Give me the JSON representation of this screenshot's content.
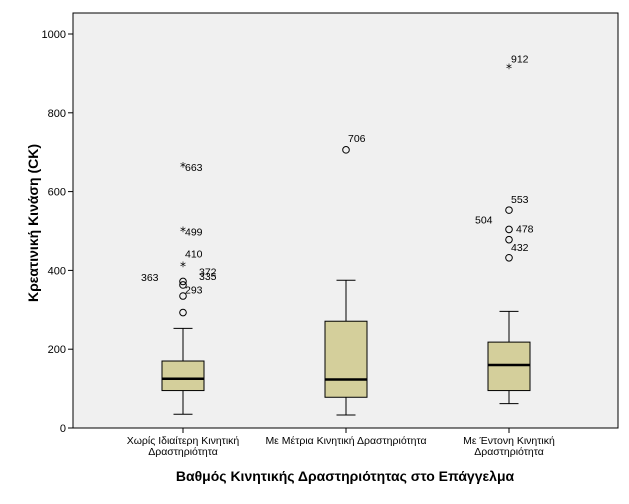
{
  "chart_data": {
    "type": "boxplot",
    "title": "",
    "xlabel": "Βαθμός Κινητικής Δραστηριότητας στο Επάγγελμα",
    "ylabel": "Κρεατινική Κινάση (CK)",
    "ylim": [
      0,
      1000
    ],
    "yticks": [
      "0",
      "200",
      "400",
      "600",
      "800",
      "1000"
    ],
    "grid": false,
    "colors": {
      "box_fill": "#d4cf9b",
      "plot_bg": "#f0f0f0",
      "line": "#000000"
    },
    "categories": [
      {
        "lines": [
          "Χωρίς Ιδιαίτερη Κινητική",
          "Δραστηριότητα"
        ],
        "whisker_low": 35,
        "q1": 95,
        "median": 125,
        "q3": 170,
        "whisker_high": 253,
        "outliers": [
          {
            "value": 663,
            "symbol": "*",
            "label": "663",
            "dx": 10,
            "dy": 0
          },
          {
            "value": 499,
            "symbol": "*",
            "label": "499",
            "dx": 10,
            "dy": 0
          },
          {
            "value": 410,
            "symbol": "*",
            "label": "410",
            "dx": 10,
            "dy": -13
          },
          {
            "value": 372,
            "symbol": "o",
            "label": "372",
            "dx": 24,
            "dy": -10
          },
          {
            "value": 363,
            "symbol": "o",
            "label": "363",
            "dx": -34,
            "dy": -8
          },
          {
            "value": 335,
            "symbol": "o",
            "label": "335",
            "dx": 24,
            "dy": -20
          },
          {
            "value": 293,
            "symbol": "o",
            "label": "293",
            "dx": 10,
            "dy": -23
          }
        ]
      },
      {
        "lines": [
          "Με Μέτρια Κινητική Δραστηριότητα"
        ],
        "whisker_low": 33,
        "q1": 78,
        "median": 123,
        "q3": 271,
        "whisker_high": 375,
        "outliers": [
          {
            "value": 706,
            "symbol": "o",
            "label": "706",
            "dx": 10,
            "dy": -12
          }
        ]
      },
      {
        "lines": [
          "Με Έντονη Κινητική",
          "Δραστηριότητα"
        ],
        "whisker_low": 62,
        "q1": 95,
        "median": 160,
        "q3": 218,
        "whisker_high": 296,
        "outliers": [
          {
            "value": 912,
            "symbol": "*",
            "label": "912",
            "dx": 10,
            "dy": -10
          },
          {
            "value": 553,
            "symbol": "o",
            "label": "553",
            "dx": 10,
            "dy": -11
          },
          {
            "value": 504,
            "symbol": "o",
            "label": "504",
            "dx": -26,
            "dy": -10
          },
          {
            "value": 478,
            "symbol": "o",
            "label": "478",
            "dx": 15,
            "dy": -11
          },
          {
            "value": 432,
            "symbol": "o",
            "label": "432",
            "dx": 10,
            "dy": -11
          }
        ]
      }
    ]
  }
}
